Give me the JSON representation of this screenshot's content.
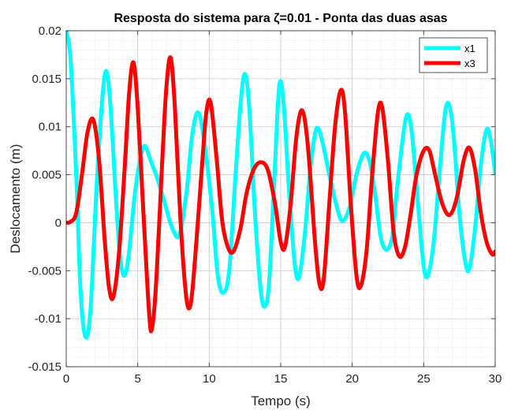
{
  "chart_data": {
    "type": "line",
    "title": "Resposta do sistema para ζ=0.01 - Ponta das duas asas",
    "xlabel": "Tempo (s)",
    "ylabel": "Deslocamento (m)",
    "xlim": [
      0,
      30
    ],
    "ylim": [
      -0.015,
      0.02
    ],
    "xticks": [
      0,
      5,
      10,
      15,
      20,
      25,
      30
    ],
    "xtick_labels": [
      "0",
      "5",
      "10",
      "15",
      "20",
      "25",
      "30"
    ],
    "yticks": [
      -0.015,
      -0.01,
      -0.005,
      0,
      0.005,
      0.01,
      0.015,
      0.02
    ],
    "ytick_labels": [
      "-0.015",
      "-0.01",
      "-0.005",
      "0",
      "0.005",
      "0.01",
      "0.015",
      "0.02"
    ],
    "grid": true,
    "minor_grid": true,
    "legend_position": "top-right",
    "series": [
      {
        "name": "x1",
        "color": "#00FFFF",
        "points": [
          [
            0,
            0.02
          ],
          [
            0.3,
            0.017
          ],
          [
            0.7,
            0.005
          ],
          [
            1.0,
            -0.007
          ],
          [
            1.35,
            -0.0119
          ],
          [
            1.7,
            -0.009
          ],
          [
            2.1,
            0.003
          ],
          [
            2.5,
            0.0125
          ],
          [
            2.8,
            0.0158
          ],
          [
            3.1,
            0.012
          ],
          [
            3.5,
            0.002
          ],
          [
            3.8,
            -0.004
          ],
          [
            4.1,
            -0.0055
          ],
          [
            4.4,
            -0.003
          ],
          [
            4.8,
            0.003
          ],
          [
            5.2,
            0.0068
          ],
          [
            5.5,
            0.008
          ],
          [
            5.9,
            0.0065
          ],
          [
            6.4,
            0.0045
          ],
          [
            6.9,
            0.002
          ],
          [
            7.4,
            -0.0005
          ],
          [
            7.9,
            -0.0013
          ],
          [
            8.4,
            0.003
          ],
          [
            8.8,
            0.009
          ],
          [
            9.2,
            0.0115
          ],
          [
            9.6,
            0.009
          ],
          [
            10.2,
            0.0015
          ],
          [
            10.6,
            -0.0055
          ],
          [
            11.0,
            -0.0073
          ],
          [
            11.4,
            -0.005
          ],
          [
            11.8,
            0.004
          ],
          [
            12.2,
            0.0125
          ],
          [
            12.5,
            0.0155
          ],
          [
            12.8,
            0.012
          ],
          [
            13.2,
            0.001
          ],
          [
            13.6,
            -0.007
          ],
          [
            13.9,
            -0.0087
          ],
          [
            14.2,
            -0.006
          ],
          [
            14.6,
            0.006
          ],
          [
            14.9,
            0.0143
          ],
          [
            15.2,
            0.0125
          ],
          [
            15.6,
            0.003
          ],
          [
            16.0,
            -0.0045
          ],
          [
            16.3,
            -0.0056
          ],
          [
            16.7,
            -0.001
          ],
          [
            17.1,
            0.006
          ],
          [
            17.5,
            0.0098
          ],
          [
            17.9,
            0.0085
          ],
          [
            18.4,
            0.005
          ],
          [
            18.9,
            0.0018
          ],
          [
            19.3,
            0.0002
          ],
          [
            19.8,
            0.0015
          ],
          [
            20.3,
            0.005
          ],
          [
            20.8,
            0.0072
          ],
          [
            21.2,
            0.0065
          ],
          [
            21.6,
            0.003
          ],
          [
            22.0,
            -0.0015
          ],
          [
            22.4,
            -0.0028
          ],
          [
            22.8,
            -0.0015
          ],
          [
            23.1,
            0.003
          ],
          [
            23.6,
            0.0095
          ],
          [
            23.9,
            0.0113
          ],
          [
            24.2,
            0.009
          ],
          [
            24.6,
            0.002
          ],
          [
            25.0,
            -0.0045
          ],
          [
            25.3,
            -0.0055
          ],
          [
            25.7,
            -0.002
          ],
          [
            26.1,
            0.005
          ],
          [
            26.5,
            0.0115
          ],
          [
            26.8,
            0.0122
          ],
          [
            27.1,
            0.009
          ],
          [
            27.5,
            0.001
          ],
          [
            27.9,
            -0.004
          ],
          [
            28.2,
            -0.0048
          ],
          [
            28.6,
            -0.0005
          ],
          [
            29.0,
            0.006
          ],
          [
            29.4,
            0.0097
          ],
          [
            29.7,
            0.0085
          ],
          [
            30.0,
            0.0052
          ]
        ]
      },
      {
        "name": "x3",
        "color": "#FF0000",
        "points": [
          [
            0,
            0
          ],
          [
            0.3,
            0.0001
          ],
          [
            0.7,
            0.001
          ],
          [
            1.1,
            0.005
          ],
          [
            1.5,
            0.0095
          ],
          [
            1.9,
            0.0107
          ],
          [
            2.3,
            0.0065
          ],
          [
            2.7,
            -0.002
          ],
          [
            3.0,
            -0.0068
          ],
          [
            3.3,
            -0.0077
          ],
          [
            3.7,
            -0.003
          ],
          [
            4.1,
            0.006
          ],
          [
            4.4,
            0.0135
          ],
          [
            4.7,
            0.0167
          ],
          [
            5.0,
            0.012
          ],
          [
            5.4,
            0.001
          ],
          [
            5.8,
            -0.0095
          ],
          [
            6.0,
            -0.011
          ],
          [
            6.3,
            -0.006
          ],
          [
            6.7,
            0.006
          ],
          [
            7.0,
            0.014
          ],
          [
            7.3,
            0.0172
          ],
          [
            7.6,
            0.012
          ],
          [
            8.0,
            0.0
          ],
          [
            8.4,
            -0.0078
          ],
          [
            8.7,
            -0.0085
          ],
          [
            9.0,
            -0.004
          ],
          [
            9.5,
            0.006
          ],
          [
            9.8,
            0.0115
          ],
          [
            10.1,
            0.0125
          ],
          [
            10.5,
            0.007
          ],
          [
            10.9,
            0.0003
          ],
          [
            11.3,
            -0.0025
          ],
          [
            11.7,
            -0.003
          ],
          [
            12.2,
            -0.0005
          ],
          [
            12.6,
            0.003
          ],
          [
            13.1,
            0.0055
          ],
          [
            13.6,
            0.0063
          ],
          [
            14.1,
            0.0055
          ],
          [
            14.6,
            0.002
          ],
          [
            15.0,
            -0.002
          ],
          [
            15.3,
            -0.0025
          ],
          [
            15.7,
            0.002
          ],
          [
            16.1,
            0.009
          ],
          [
            16.5,
            0.0117
          ],
          [
            16.9,
            0.008
          ],
          [
            17.4,
            -0.002
          ],
          [
            17.7,
            -0.0063
          ],
          [
            18.0,
            -0.006
          ],
          [
            18.4,
            0.002
          ],
          [
            18.8,
            0.01
          ],
          [
            19.2,
            0.0138
          ],
          [
            19.5,
            0.0115
          ],
          [
            19.9,
            0.002
          ],
          [
            20.3,
            -0.0055
          ],
          [
            20.6,
            -0.0066
          ],
          [
            21.0,
            -0.003
          ],
          [
            21.4,
            0.005
          ],
          [
            21.8,
            0.0115
          ],
          [
            22.1,
            0.012
          ],
          [
            22.5,
            0.0065
          ],
          [
            22.9,
            -0.001
          ],
          [
            23.3,
            -0.0035
          ],
          [
            23.7,
            -0.0025
          ],
          [
            24.1,
            0.001
          ],
          [
            24.5,
            0.005
          ],
          [
            25.0,
            0.0075
          ],
          [
            25.4,
            0.0075
          ],
          [
            25.8,
            0.005
          ],
          [
            26.3,
            0.002
          ],
          [
            26.8,
            0.0008
          ],
          [
            27.3,
            0.0025
          ],
          [
            27.8,
            0.0065
          ],
          [
            28.2,
            0.0078
          ],
          [
            28.6,
            0.0055
          ],
          [
            29.0,
            0.001
          ],
          [
            29.4,
            -0.002
          ],
          [
            29.8,
            -0.0033
          ],
          [
            30.0,
            -0.003
          ]
        ]
      }
    ]
  }
}
